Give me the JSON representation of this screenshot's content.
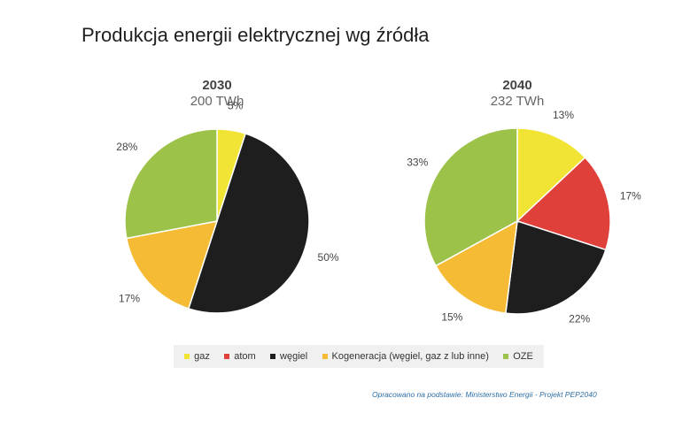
{
  "title": "Produkcja energii elektrycznej wg źródła",
  "source_note": "Opracowano na podstawie: Ministerstwo Energii - Projekt PEP2040",
  "colors": {
    "gaz": "#f2e434",
    "atom": "#e0403a",
    "wegiel": "#1e1e1e",
    "kogeneracja": "#f6bb34",
    "oze": "#9dc249"
  },
  "legend": [
    {
      "key": "gaz",
      "label": "gaz"
    },
    {
      "key": "atom",
      "label": "atom"
    },
    {
      "key": "wegiel",
      "label": "węgiel"
    },
    {
      "key": "kogeneracja",
      "label": "Kogeneracja (węgiel, gaz z lub inne)"
    },
    {
      "key": "oze",
      "label": "OZE"
    }
  ],
  "chart_data": [
    {
      "type": "pie",
      "title": "2030",
      "subtitle": "200 TWh",
      "slices": [
        {
          "key": "gaz",
          "value": 5,
          "label": "5%"
        },
        {
          "key": "wegiel",
          "value": 50,
          "label": "50%"
        },
        {
          "key": "kogeneracja",
          "value": 17,
          "label": "17%"
        },
        {
          "key": "oze",
          "value": 28,
          "label": "28%"
        }
      ]
    },
    {
      "type": "pie",
      "title": "2040",
      "subtitle": "232 TWh",
      "slices": [
        {
          "key": "gaz",
          "value": 13,
          "label": "13%"
        },
        {
          "key": "atom",
          "value": 17,
          "label": "17%"
        },
        {
          "key": "wegiel",
          "value": 22,
          "label": "22%"
        },
        {
          "key": "kogeneracja",
          "value": 15,
          "label": "15%"
        },
        {
          "key": "oze",
          "value": 33,
          "label": "33%"
        }
      ]
    }
  ]
}
